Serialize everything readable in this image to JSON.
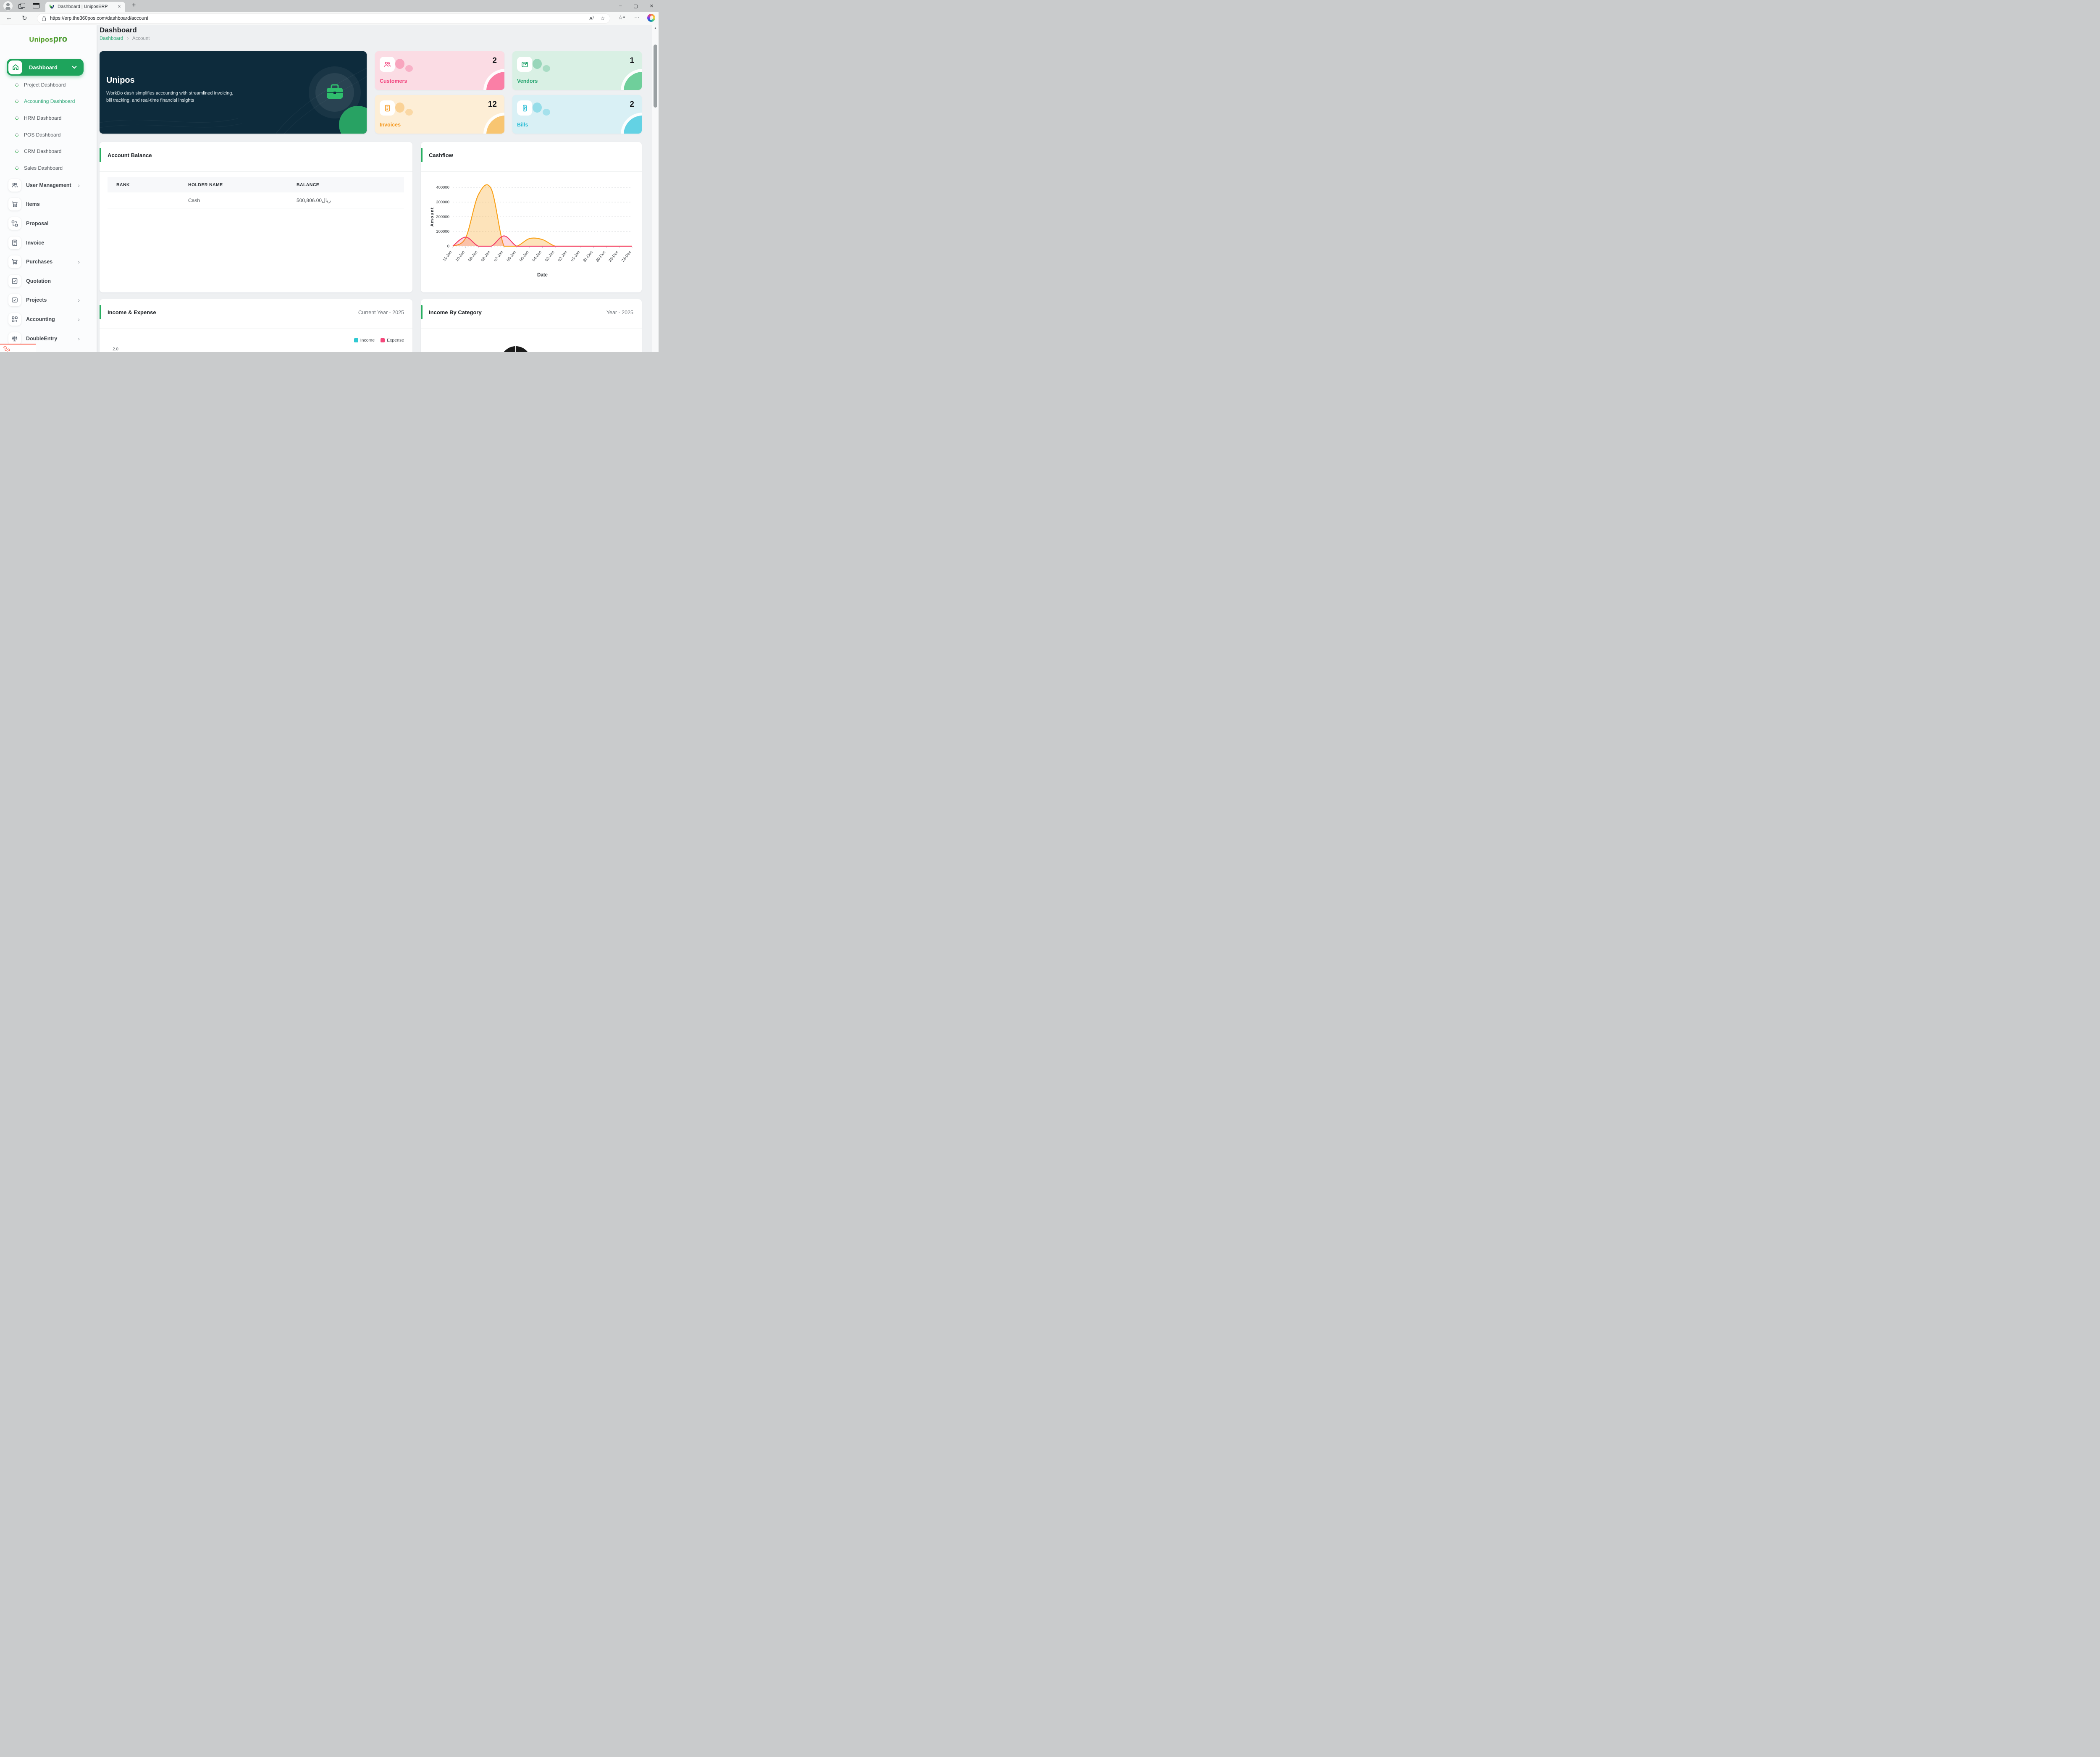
{
  "browser": {
    "tab_title": "Dashboard | UniposERP",
    "url": "https://erp.the360pos.com/dashboard/account"
  },
  "icons": {
    "minimize": "–",
    "maximize": "▢",
    "close": "✕",
    "tab_close": "✕",
    "new_tab": "+",
    "back": "←",
    "refresh": "↻",
    "star": "☆",
    "favorites_bar_star": "☆",
    "favorites_bar_lines": "≡",
    "more": "⋯",
    "read_aloud": "A",
    "chevron_right": "›",
    "breadcrumb_separator": "›",
    "scroll_up": "▲"
  },
  "sidebar": {
    "logo": {
      "main": "Unipos",
      "suffix": "pro"
    },
    "dashboard": {
      "label": "Dashboard"
    },
    "sub_items": [
      {
        "label": "Project Dashboard",
        "active": false
      },
      {
        "label": "Accounting Dashboard",
        "active": true
      },
      {
        "label": "HRM Dashboard",
        "active": false
      },
      {
        "label": "POS Dashboard",
        "active": false
      },
      {
        "label": "CRM Dashboard",
        "active": false
      },
      {
        "label": "Sales Dashboard",
        "active": false
      }
    ],
    "menu_items": [
      {
        "label": "User Management",
        "icon": "users-icon",
        "chevron": true
      },
      {
        "label": "Items",
        "icon": "cart-icon",
        "chevron": false
      },
      {
        "label": "Proposal",
        "icon": "swap-icon",
        "chevron": false
      },
      {
        "label": "Invoice",
        "icon": "document-icon",
        "chevron": false
      },
      {
        "label": "Purchases",
        "icon": "cart-icon",
        "chevron": true
      },
      {
        "label": "Quotation",
        "icon": "document-check-icon",
        "chevron": false
      },
      {
        "label": "Projects",
        "icon": "checkbox-icon",
        "chevron": true
      },
      {
        "label": "Accounting",
        "icon": "grid-plus-icon",
        "chevron": true
      },
      {
        "label": "DoubleEntry",
        "icon": "balance-icon",
        "chevron": true
      }
    ]
  },
  "page": {
    "title": "Dashboard",
    "breadcrumb": {
      "root": "Dashboard",
      "current": "Account"
    }
  },
  "hero": {
    "title": "Unipos",
    "description_line1": "WorkDo dash simplifies accounting with streamlined invoicing,",
    "description_line2": "bill tracking, and real-time financial insights"
  },
  "stats": [
    {
      "label": "Customers",
      "value": "2",
      "accent": "#f1447e",
      "bg": "#fbdce4",
      "corner": "#fa7fa6"
    },
    {
      "label": "Vendors",
      "value": "1",
      "accent": "#27a570",
      "bg": "#d9f0e4",
      "corner": "#6fcf9b"
    },
    {
      "label": "Invoices",
      "value": "12",
      "accent": "#f49b26",
      "bg": "#fdeed6",
      "corner": "#f8c571"
    },
    {
      "label": "Bills",
      "value": "2",
      "accent": "#2ebed6",
      "bg": "#d9f0f5",
      "corner": "#63d2e4"
    }
  ],
  "account_balance": {
    "title": "Account Balance",
    "columns": [
      "BANK",
      "HOLDER NAME",
      "BALANCE"
    ],
    "rows": [
      {
        "bank": "",
        "holder": "Cash",
        "balance": "500,806.00ريال"
      }
    ]
  },
  "cashflow_panel": {
    "title": "Cashflow"
  },
  "income_expense": {
    "title": "Income & Expense",
    "period": "Current Year - 2025",
    "legend": [
      {
        "label": "Income",
        "color": "#2fc9d2"
      },
      {
        "label": "Expense",
        "color": "#f5487b"
      }
    ],
    "visible_tick": "2.0"
  },
  "income_by_category": {
    "title": "Income By Category",
    "period": "Year - 2025"
  },
  "chart_data": {
    "type": "area",
    "title": "Cashflow",
    "x": [
      "11-Jan",
      "10-Jan",
      "09-Jan",
      "08-Jan",
      "07-Jan",
      "06-Jan",
      "05-Jan",
      "04-Jan",
      "03-Jan",
      "02-Jan",
      "01-Jan",
      "31-Dec",
      "30-Dec",
      "29-Dec",
      "28-Dec"
    ],
    "series": [
      {
        "name": "Income",
        "color": "#f9a21b",
        "fill": "rgba(249,162,27,0.30)",
        "values": [
          0,
          55000,
          350000,
          390000,
          0,
          0,
          52000,
          45000,
          0,
          0,
          0,
          0,
          0,
          0,
          0
        ]
      },
      {
        "name": "Expense",
        "color": "#f43f6b",
        "fill": "rgba(244,63,107,0.20)",
        "values": [
          0,
          62000,
          0,
          0,
          70000,
          0,
          0,
          0,
          0,
          0,
          0,
          0,
          0,
          0,
          0
        ]
      }
    ],
    "xlabel": "Date",
    "ylabel": "Amount",
    "ylim": [
      0,
      400000
    ],
    "yticks": [
      0,
      100000,
      200000,
      300000,
      400000
    ],
    "grid": "dashed-horizontal",
    "legend_position": "none"
  }
}
